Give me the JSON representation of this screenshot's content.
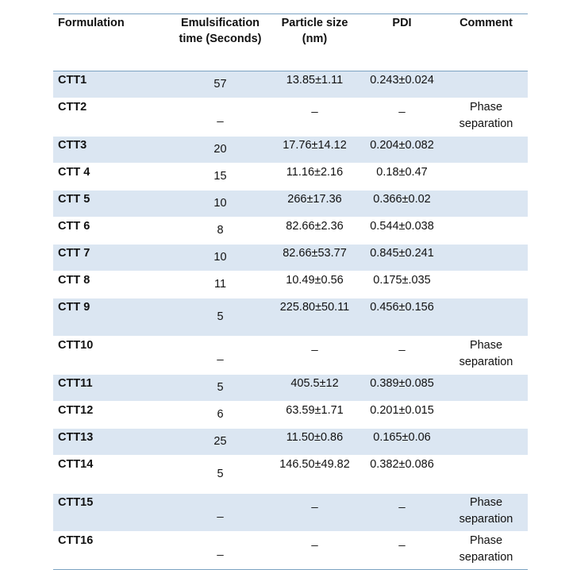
{
  "table": {
    "headers": {
      "formulation": "Formulation",
      "time": "Emulsification time (Seconds)",
      "size": "Particle size (nm)",
      "pdi": "PDI",
      "comment": "Comment"
    },
    "rows": [
      {
        "formulation": "CTT1",
        "time": "57",
        "size": "13.85±1.11",
        "pdi": "0.243±0.024",
        "comment": ""
      },
      {
        "formulation": "CTT2",
        "time": "_",
        "size": "_",
        "pdi": "_",
        "comment": "Phase separation"
      },
      {
        "formulation": "CTT3",
        "time": "20",
        "size": "17.76±14.12",
        "pdi": "0.204±0.082",
        "comment": ""
      },
      {
        "formulation": "CTT 4",
        "time": "15",
        "size": "11.16±2.16",
        "pdi": "0.18±0.47",
        "comment": ""
      },
      {
        "formulation": "CTT 5",
        "time": "10",
        "size": "266±17.36",
        "pdi": "0.366±0.02",
        "comment": ""
      },
      {
        "formulation": "CTT 6",
        "time": "8",
        "size": "82.66±2.36",
        "pdi": "0.544±0.038",
        "comment": ""
      },
      {
        "formulation": "CTT 7",
        "time": "10",
        "size": "82.66±53.77",
        "pdi": "0.845±0.241",
        "comment": ""
      },
      {
        "formulation": "CTT 8",
        "time": "11",
        "size": "10.49±0.56",
        "pdi": "0.175±.035",
        "comment": ""
      },
      {
        "formulation": "CTT 9",
        "time": "5",
        "size": "225.80±50.11",
        "pdi": "0.456±0.156",
        "comment": ""
      },
      {
        "formulation": "CTT10",
        "time": "_",
        "size": "_",
        "pdi": "_",
        "comment": "Phase separation"
      },
      {
        "formulation": "CTT11",
        "time": "5",
        "size": "405.5±12",
        "pdi": "0.389±0.085",
        "comment": ""
      },
      {
        "formulation": "CTT12",
        "time": "6",
        "size": "63.59±1.71",
        "pdi": "0.201±0.015",
        "comment": ""
      },
      {
        "formulation": "CTT13",
        "time": "25",
        "size": "11.50±0.86",
        "pdi": "0.165±0.06",
        "comment": ""
      },
      {
        "formulation": "CTT14",
        "time": "5",
        "size": "146.50±49.82",
        "pdi": "0.382±0.086",
        "comment": ""
      },
      {
        "formulation": "CTT15",
        "time": "_",
        "size": "_",
        "pdi": "_",
        "comment": "Phase separation"
      },
      {
        "formulation": "CTT16",
        "time": "_",
        "size": "_",
        "pdi": "_",
        "comment": "Phase separation"
      }
    ]
  }
}
